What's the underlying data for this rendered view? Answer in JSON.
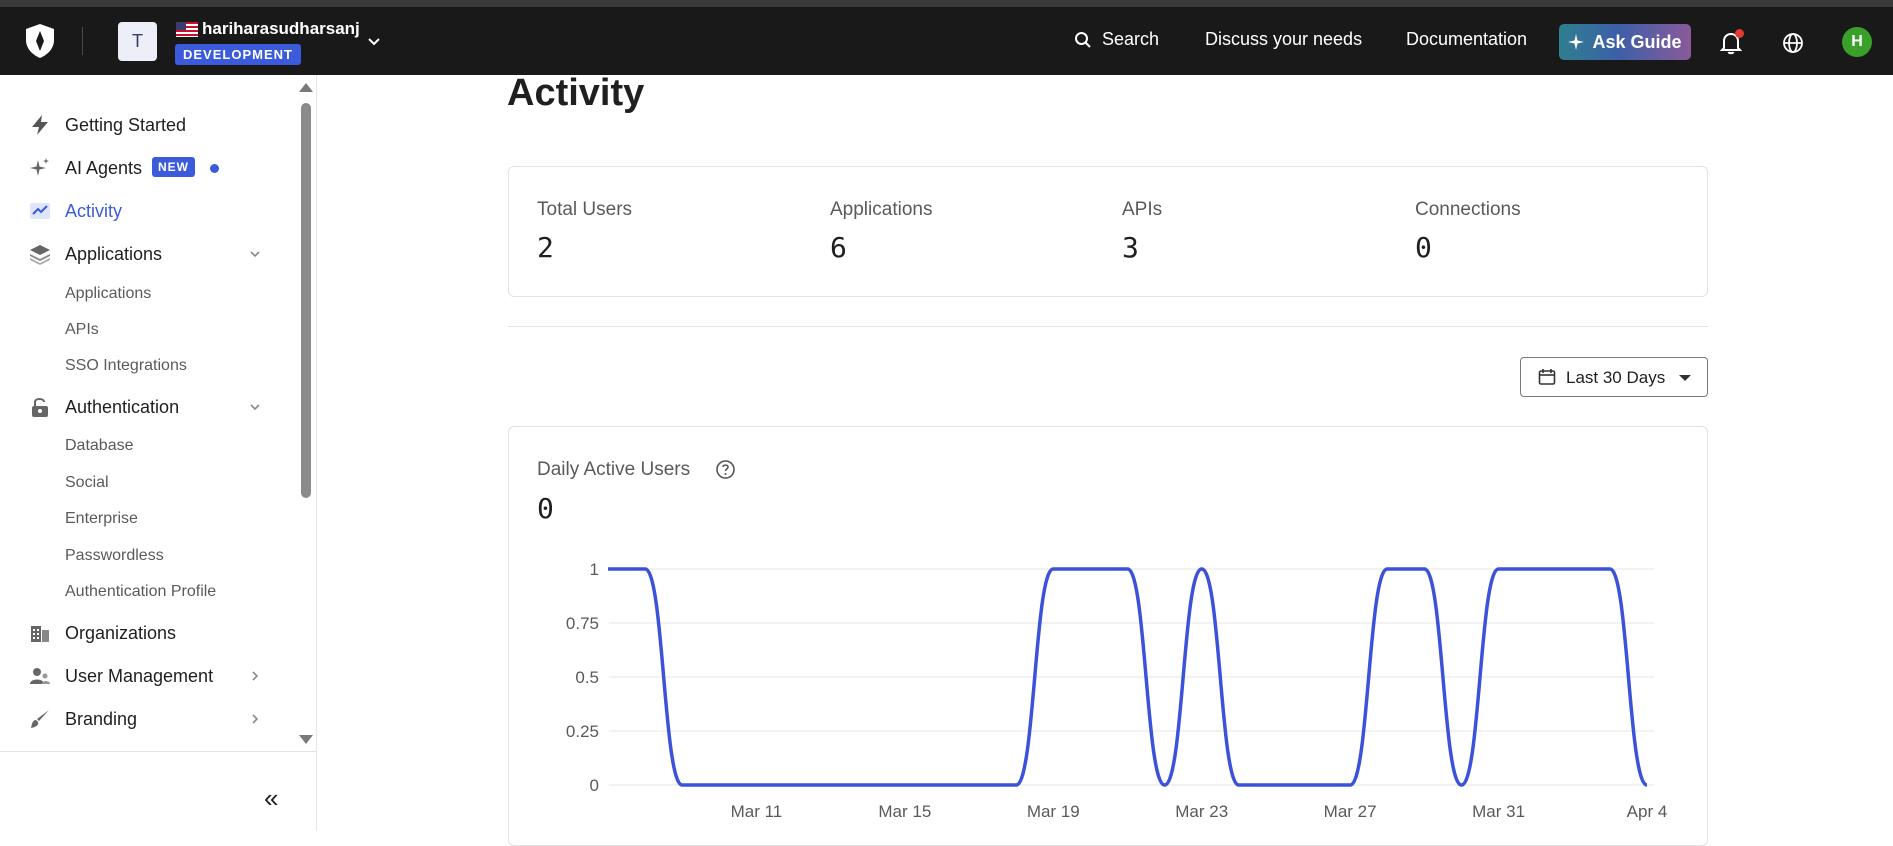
{
  "header": {
    "tenant_initial": "T",
    "tenant_name": "hariharasudharsanj",
    "environment": "DEVELOPMENT",
    "search_label": "Search",
    "links": [
      "Discuss your needs",
      "Documentation"
    ],
    "ask_guide_label": "Ask Guide",
    "user_initial": "H"
  },
  "sidebar": {
    "getting_started": "Getting Started",
    "ai_agents": "AI Agents",
    "new_badge": "NEW",
    "activity": "Activity",
    "applications": "Applications",
    "applications_sub": [
      "Applications",
      "APIs",
      "SSO Integrations"
    ],
    "authentication": "Authentication",
    "authentication_sub": [
      "Database",
      "Social",
      "Enterprise",
      "Passwordless",
      "Authentication Profile"
    ],
    "organizations": "Organizations",
    "user_management": "User Management",
    "branding": "Branding",
    "collapse_label": "«"
  },
  "main": {
    "title": "Activity",
    "stats": [
      {
        "label": "Total Users",
        "value": "2"
      },
      {
        "label": "Applications",
        "value": "6"
      },
      {
        "label": "APIs",
        "value": "3"
      },
      {
        "label": "Connections",
        "value": "0"
      }
    ],
    "date_range": "Last 30 Days",
    "dau_title": "Daily Active Users",
    "dau_value": "0"
  },
  "colors": {
    "accent": "#3b5bdb",
    "line": "#3b52d9",
    "topbar": "#191919"
  },
  "chart_data": {
    "type": "line",
    "title": "Daily Active Users",
    "x_tick_labels": [
      "Mar 11",
      "Mar 15",
      "Mar 19",
      "Mar 23",
      "Mar 27",
      "Mar 31",
      "Apr 4"
    ],
    "y_tick_labels": [
      "1",
      "0.75",
      "0.5",
      "0.25",
      "0"
    ],
    "ylim": [
      0,
      1
    ],
    "grid": true,
    "series": [
      {
        "x": [
          "Mar 7",
          "Mar 8",
          "Mar 9",
          "Mar 10",
          "Mar 11",
          "Mar 12",
          "Mar 13",
          "Mar 14",
          "Mar 15",
          "Mar 16",
          "Mar 17",
          "Mar 18",
          "Mar 19",
          "Mar 20",
          "Mar 21",
          "Mar 22",
          "Mar 23",
          "Mar 24",
          "Mar 25",
          "Mar 26",
          "Mar 27",
          "Mar 28",
          "Mar 29",
          "Mar 30",
          "Mar 31",
          "Apr 1",
          "Apr 2",
          "Apr 3",
          "Apr 4"
        ],
        "values": [
          1,
          1,
          0,
          0,
          0,
          0,
          0,
          0,
          0,
          0,
          0,
          0,
          1,
          1,
          1,
          0,
          1,
          0,
          0,
          0,
          0,
          1,
          1,
          0,
          1,
          1,
          1,
          1,
          0
        ]
      }
    ]
  }
}
